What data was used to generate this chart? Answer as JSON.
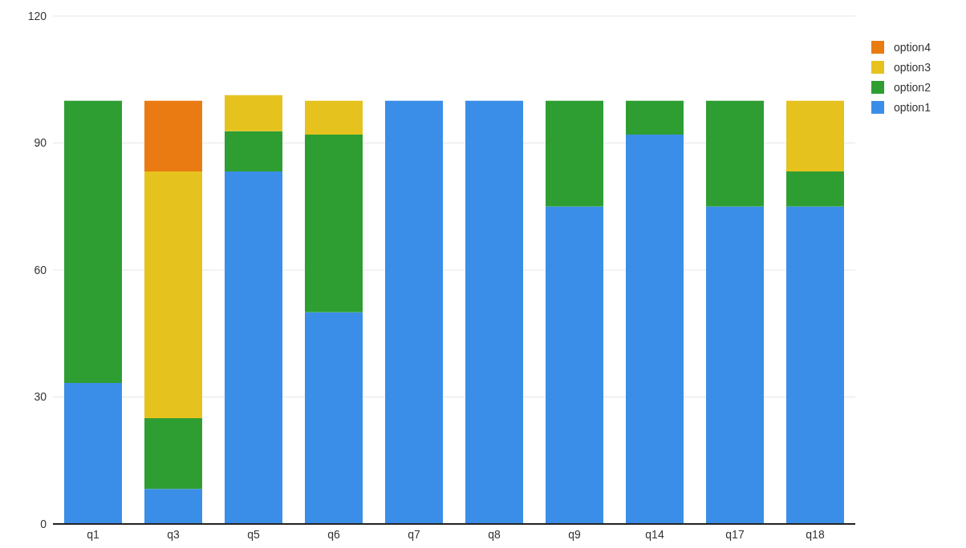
{
  "chart_data": {
    "type": "bar",
    "stacked": true,
    "categories": [
      "q1",
      "q3",
      "q5",
      "q6",
      "q7",
      "q8",
      "q9",
      "q14",
      "q17",
      "q18"
    ],
    "series": [
      {
        "name": "option1",
        "color": "#3b8ee8",
        "values": [
          33.3,
          8.3,
          83.3,
          50,
          100,
          100,
          75,
          92,
          75,
          75
        ]
      },
      {
        "name": "option2",
        "color": "#2e9e32",
        "values": [
          66.7,
          16.7,
          9.5,
          42,
          0,
          0,
          25,
          8,
          25,
          8.3
        ]
      },
      {
        "name": "option3",
        "color": "#e6c21e",
        "values": [
          0,
          58.3,
          8.5,
          8,
          0,
          0,
          0,
          0,
          0,
          16.7
        ]
      },
      {
        "name": "option4",
        "color": "#ea7b12",
        "values": [
          0,
          16.7,
          0,
          0,
          0,
          0,
          0,
          0,
          0,
          0
        ]
      }
    ],
    "ylim": [
      0,
      120
    ],
    "yticks": [
      0,
      30,
      60,
      90,
      120
    ],
    "grid": "y",
    "legend": "right"
  }
}
